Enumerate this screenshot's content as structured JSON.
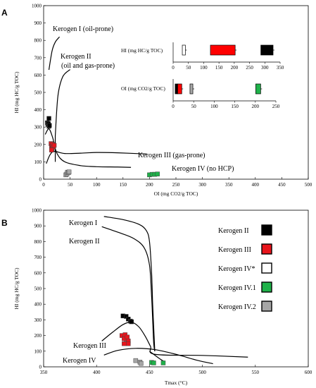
{
  "chart_data": [
    {
      "id": "A",
      "type": "scatter",
      "panel_label": "A",
      "xlabel": "OI  (mg CO2/g TOC)",
      "ylabel": "HI (mg HC/g TOC)",
      "xlim": [
        0,
        500
      ],
      "ylim": [
        0,
        1000
      ],
      "xticks": [
        0,
        50,
        100,
        150,
        200,
        250,
        300,
        350,
        400,
        450,
        500
      ],
      "yticks": [
        0,
        100,
        200,
        300,
        400,
        500,
        600,
        700,
        800,
        900,
        1000
      ],
      "curve_labels": [
        "Kerogen I (oil-prone)",
        "Kerogen II",
        "(oil and gas-prone)",
        "Kerogen III (gas-prone)",
        "Kerogen IV (no HCP)"
      ],
      "curves": [
        {
          "id": "k1",
          "points": [
            [
              10,
              630
            ],
            [
              16,
              740
            ],
            [
              22,
              790
            ],
            [
              30,
              820
            ]
          ]
        },
        {
          "id": "k2",
          "points": [
            [
              22,
              250
            ],
            [
              27,
              480
            ],
            [
              36,
              590
            ],
            [
              50,
              632
            ]
          ]
        },
        {
          "id": "k2v",
          "points": [
            [
              22,
              100
            ],
            [
              22,
              250
            ]
          ]
        },
        {
          "id": "k2lower",
          "points": [
            [
              3,
              258
            ],
            [
              10,
              290
            ],
            [
              17,
              240
            ],
            [
              25,
              150
            ],
            [
              40,
              100
            ],
            [
              70,
              78
            ],
            [
              100,
              72
            ],
            [
              140,
              70
            ],
            [
              165,
              68
            ]
          ]
        },
        {
          "id": "k3",
          "points": [
            [
              5,
              90
            ],
            [
              12,
              140
            ],
            [
              20,
              160
            ],
            [
              40,
              148
            ],
            [
              70,
              150
            ],
            [
              100,
              154
            ],
            [
              140,
              152
            ],
            [
              195,
              145
            ]
          ]
        }
      ],
      "series": [
        {
          "name": "Kerogen II",
          "color": "#000000",
          "points": [
            [
              7,
              325
            ],
            [
              8,
              315
            ],
            [
              9,
              320
            ],
            [
              10,
              305
            ],
            [
              10,
              350
            ],
            [
              11,
              310
            ]
          ]
        },
        {
          "name": "Kerogen III",
          "color": "#e8151c",
          "points": [
            [
              14,
              205
            ],
            [
              15,
              190
            ],
            [
              16,
              175
            ],
            [
              17,
              200
            ],
            [
              18,
              185
            ],
            [
              20,
              195
            ],
            [
              15,
              168
            ]
          ]
        },
        {
          "name": "Kerogen IV.1",
          "color": "#1fb24a",
          "points": [
            [
              200,
              25
            ],
            [
              205,
              28
            ],
            [
              210,
              28
            ],
            [
              215,
              30
            ]
          ]
        },
        {
          "name": "Kerogen IV.2",
          "color": "#a6a6a6",
          "points": [
            [
              42,
              25
            ],
            [
              44,
              30
            ],
            [
              45,
              40
            ],
            [
              47,
              38
            ],
            [
              48,
              42
            ]
          ]
        }
      ],
      "inset_hi": {
        "label": "HI  (mg HC/g TOC)",
        "xlim": [
          0,
          350
        ],
        "xticks": [
          0,
          50,
          100,
          150,
          200,
          250,
          300,
          350
        ],
        "bars": [
          {
            "name": "Kerogen IV*",
            "color": "#ffffff",
            "min": 30,
            "max": 40
          },
          {
            "name": "Kerogen III",
            "color": "#ff0000",
            "min": 122,
            "max": 203
          },
          {
            "name": "Kerogen II",
            "color": "#000000",
            "min": 287,
            "max": 327
          }
        ]
      },
      "inset_oi": {
        "label": "OI  (mg CO2/g TOC)",
        "xlim": [
          0,
          250
        ],
        "xticks": [
          0,
          50,
          100,
          150,
          200,
          250
        ],
        "bars": [
          {
            "name": "Kerogen II",
            "color": "#000000",
            "min": 5,
            "max": 11
          },
          {
            "name": "Kerogen III",
            "color": "#ff0000",
            "min": 11,
            "max": 21
          },
          {
            "name": "Kerogen IV.2",
            "color": "#a6a6a6",
            "min": 41,
            "max": 48
          },
          {
            "name": "Kerogen IV.1",
            "color": "#1fb24a",
            "min": 201,
            "max": 213
          }
        ]
      }
    },
    {
      "id": "B",
      "type": "scatter",
      "panel_label": "B",
      "xlabel": "Tmax (°C)",
      "ylabel": "HI (mg HC/g TOC)",
      "xlim": [
        350,
        600
      ],
      "ylim": [
        0,
        1000
      ],
      "xticks": [
        350,
        400,
        450,
        500,
        550,
        600
      ],
      "yticks": [
        0,
        100,
        200,
        300,
        400,
        500,
        600,
        700,
        800,
        900,
        1000
      ],
      "curve_labels": [
        "Kerogen I",
        "Kerogen II",
        "Kerogen III",
        "Kerogen IV"
      ],
      "legend": [
        "Kerogen II",
        "Kerogen III",
        "Kerogen IV*",
        "Kerogen IV.1",
        "Kerogen IV.2"
      ],
      "legend_colors": [
        "#000000",
        "#e8151c",
        "#ffffff",
        "#1fb24a",
        "#a6a6a6"
      ],
      "curves": [
        {
          "id": "k1",
          "points": [
            [
              407,
              960
            ],
            [
              425,
              940
            ],
            [
              440,
              910
            ],
            [
              447,
              870
            ],
            [
              450,
              800
            ],
            [
              452,
              600
            ],
            [
              453,
              400
            ],
            [
              454,
              250
            ],
            [
              455,
              100
            ]
          ]
        },
        {
          "id": "k2",
          "points": [
            [
              405,
              895
            ],
            [
              420,
              860
            ],
            [
              435,
              820
            ],
            [
              445,
              760
            ],
            [
              450,
              650
            ],
            [
              452,
              450
            ],
            [
              453,
              300
            ],
            [
              454,
              150
            ],
            [
              455,
              100
            ]
          ]
        },
        {
          "id": "k3",
          "points": [
            [
              405,
              165
            ],
            [
              415,
              220
            ],
            [
              425,
              270
            ],
            [
              433,
              285
            ],
            [
              440,
              255
            ],
            [
              446,
              195
            ],
            [
              451,
              130
            ],
            [
              455,
              80
            ],
            [
              500,
              73
            ],
            [
              543,
              62
            ]
          ]
        },
        {
          "id": "k4",
          "points": [
            [
              407,
              75
            ],
            [
              420,
              105
            ],
            [
              437,
              118
            ],
            [
              455,
              110
            ],
            [
              475,
              80
            ],
            [
              495,
              42
            ],
            [
              510,
              20
            ]
          ]
        },
        {
          "id": "k4tail",
          "points": [
            [
              450,
              100
            ],
            [
              460,
              50
            ],
            [
              465,
              30
            ]
          ]
        }
      ],
      "series": [
        {
          "name": "Kerogen II",
          "color": "#000000",
          "points": [
            [
              425,
              325
            ],
            [
              428,
              322
            ],
            [
              430,
              305
            ],
            [
              432,
              292
            ],
            [
              433,
              288
            ]
          ]
        },
        {
          "name": "Kerogen III",
          "color": "#e8151c",
          "points": [
            [
              424,
              200
            ],
            [
              426,
              180
            ],
            [
              427,
              205
            ],
            [
              428,
              150
            ],
            [
              429,
              190
            ],
            [
              430,
              165
            ],
            [
              426,
              148
            ],
            [
              430,
              148
            ]
          ]
        },
        {
          "name": "Kerogen IV.1",
          "color": "#1fb24a",
          "points": [
            [
              452,
              28
            ],
            [
              454,
              25
            ],
            [
              463,
              25
            ]
          ]
        },
        {
          "name": "Kerogen IV.2",
          "color": "#a6a6a6",
          "points": [
            [
              437,
              40
            ],
            [
              441,
              30
            ],
            [
              442,
              22
            ]
          ]
        }
      ]
    }
  ]
}
